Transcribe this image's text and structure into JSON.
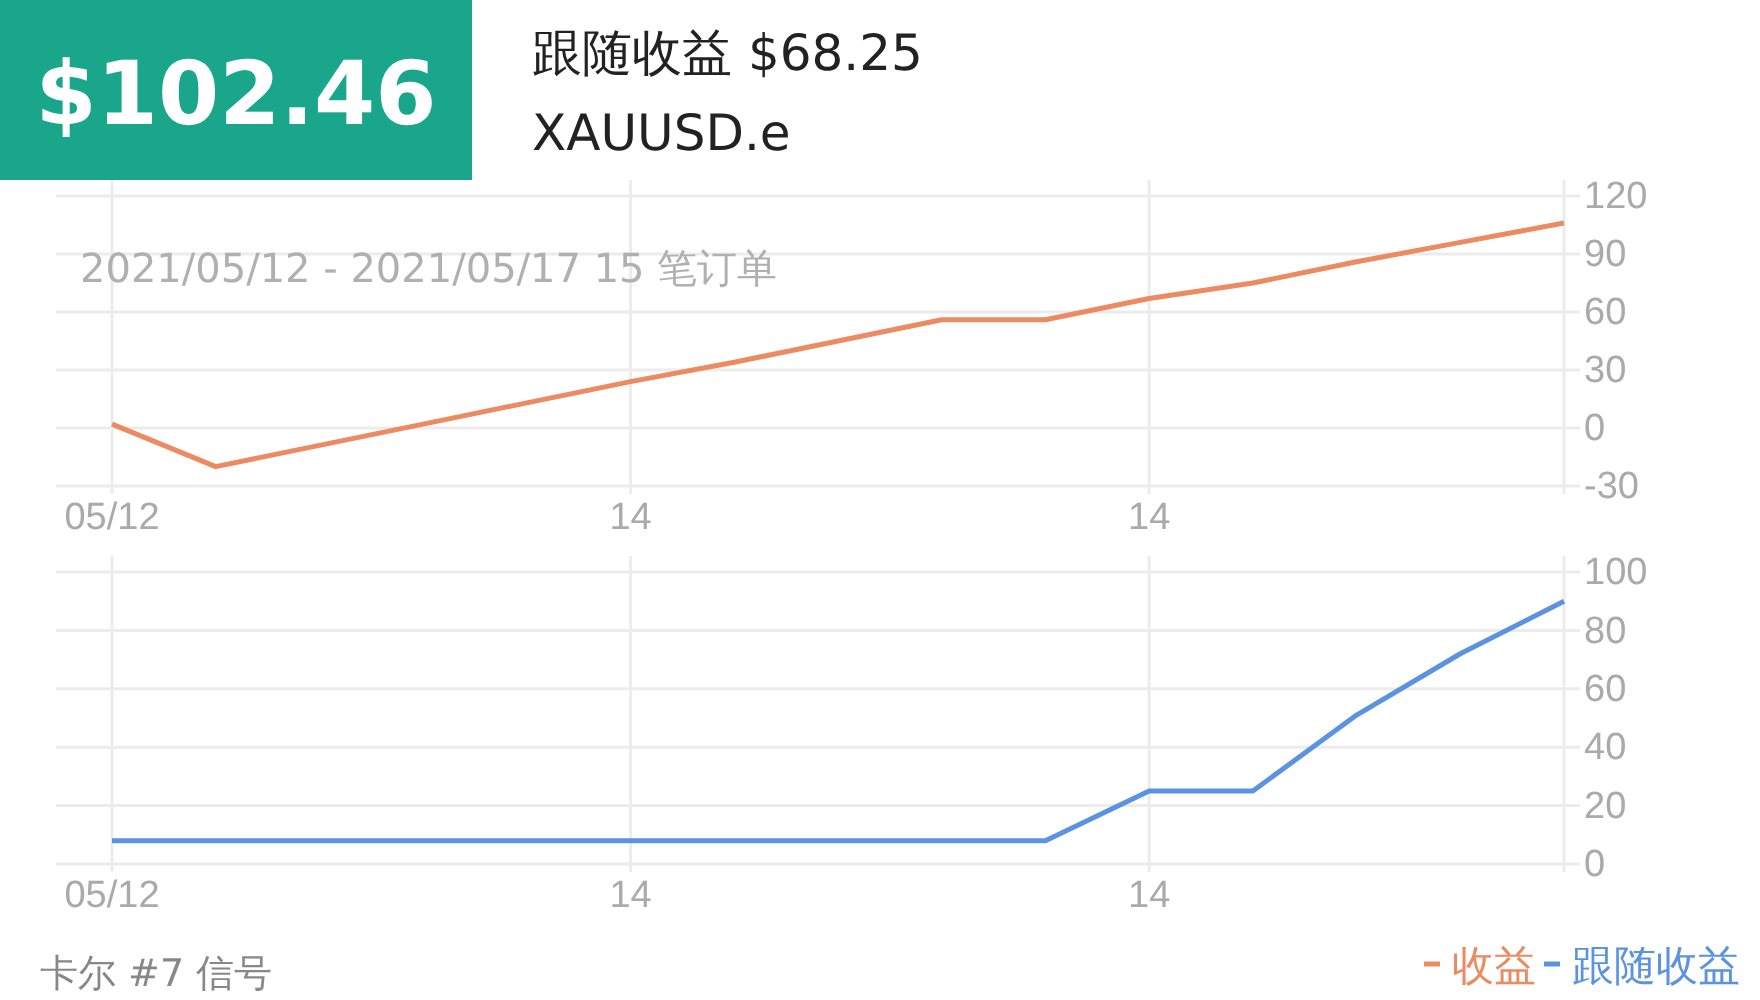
{
  "chart_data": [
    {
      "type": "line",
      "title": "$102.46",
      "subtitle": "跟随收益 $68.25",
      "annotations": [
        "XAUUSD.e",
        "2021/05/12 - 2021/05/17 15 笔订单"
      ],
      "categories": [
        "05/12",
        null,
        null,
        null,
        null,
        "14",
        null,
        null,
        null,
        null,
        "14",
        null,
        null,
        null,
        null
      ],
      "series": [
        {
          "name": "收益",
          "color": "#ec8a62",
          "values": [
            2,
            -20,
            -9,
            2,
            13,
            24,
            34,
            45,
            56,
            56,
            67,
            75,
            86,
            96,
            106
          ]
        }
      ],
      "ylim": [
        -30,
        120
      ],
      "yticks": [
        -30,
        0,
        30,
        60,
        90,
        120
      ],
      "grid": true,
      "legend": "bottom right",
      "marker": "none",
      "line_style": "solid"
    },
    {
      "type": "line",
      "annotations": [
        "卡尔 #7 信号"
      ],
      "categories": [
        "05/12",
        null,
        null,
        null,
        null,
        "14",
        null,
        null,
        null,
        null,
        "14",
        null,
        null,
        null,
        null
      ],
      "series": [
        {
          "name": "跟随收益",
          "color": "#5b93e0",
          "values": [
            8,
            8,
            8,
            8,
            8,
            8,
            8,
            8,
            8,
            8,
            25,
            25,
            51,
            72,
            90
          ]
        }
      ],
      "ylim": [
        0,
        100
      ],
      "yticks": [
        0,
        20,
        40,
        60,
        80,
        100
      ],
      "grid": true,
      "legend": "bottom right",
      "marker": "none",
      "line_style": "solid"
    }
  ]
}
